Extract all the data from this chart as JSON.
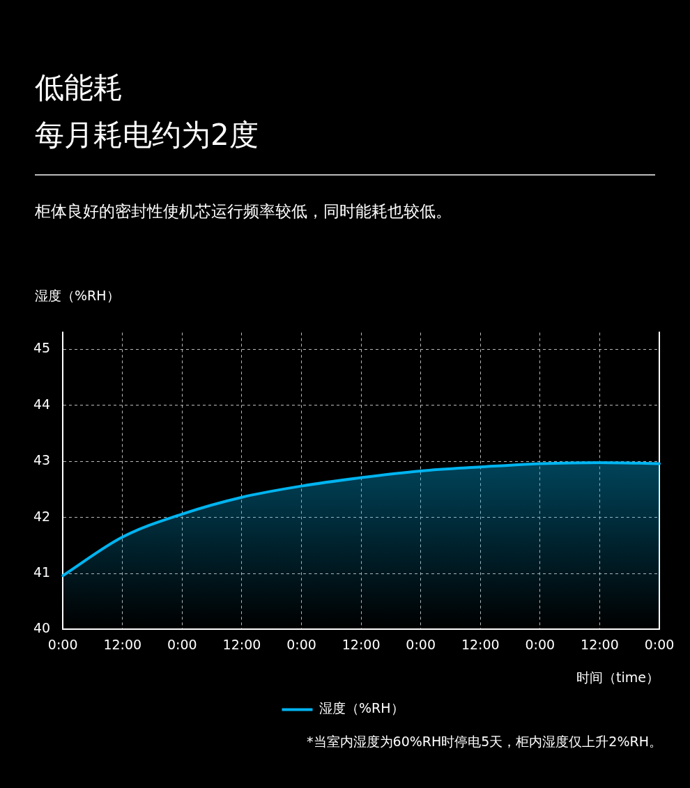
{
  "chart_data": {
    "type": "area",
    "title": "低能耗",
    "subtitle": "每月耗电约为2度",
    "annotations": [
      "柜体良好的密封性使机芯运行频率较低，同时能耗也较低。",
      "*当室内湿度为60%RH时停电5天，柜内湿度仅上升2%RH。"
    ],
    "ylabel": "湿度（%RH）",
    "xlabel": "时间（time）",
    "categories": [
      "0:00",
      "12:00",
      "0:00",
      "12:00",
      "0:00",
      "12:00",
      "0:00",
      "12:00",
      "0:00",
      "12:00",
      "0:00"
    ],
    "series": [
      {
        "name": "湿度（%RH）",
        "color": "#00b4f0",
        "values": [
          40.96,
          41.65,
          42.06,
          42.36,
          42.56,
          42.71,
          42.83,
          42.9,
          42.96,
          42.98,
          42.96
        ]
      }
    ],
    "ylim": [
      40,
      45.3
    ],
    "yticks": [
      40,
      41,
      42,
      43,
      44,
      45
    ],
    "grid": true,
    "legend": "bottom",
    "marker": "none",
    "line_style": "solid"
  }
}
